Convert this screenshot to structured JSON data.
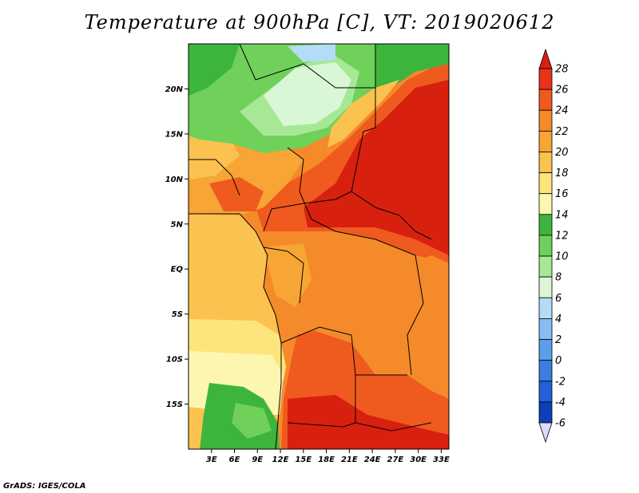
{
  "title": "Temperature at 900hPa [C], VT: 2019020612",
  "credit": "GrADS: IGES/COLA",
  "map": {
    "lon_range": [
      0,
      34
    ],
    "lat_range": [
      -20,
      25
    ],
    "lat_ticks": [
      {
        "value": 20,
        "label": "20N"
      },
      {
        "value": 15,
        "label": "15N"
      },
      {
        "value": 10,
        "label": "10N"
      },
      {
        "value": 5,
        "label": "5N"
      },
      {
        "value": 0,
        "label": "EQ"
      },
      {
        "value": -5,
        "label": "5S"
      },
      {
        "value": -10,
        "label": "10S"
      },
      {
        "value": -15,
        "label": "15S"
      }
    ],
    "lon_ticks": [
      {
        "value": 3,
        "label": "3E"
      },
      {
        "value": 6,
        "label": "6E"
      },
      {
        "value": 9,
        "label": "9E"
      },
      {
        "value": 12,
        "label": "12E"
      },
      {
        "value": 15,
        "label": "15E"
      },
      {
        "value": 18,
        "label": "18E"
      },
      {
        "value": 21,
        "label": "21E"
      },
      {
        "value": 24,
        "label": "24E"
      },
      {
        "value": 27,
        "label": "27E"
      },
      {
        "value": 30,
        "label": "30E"
      },
      {
        "value": 33,
        "label": "33E"
      }
    ]
  },
  "colorbar": {
    "levels": [
      {
        "label": "28",
        "color": "#e8331a"
      },
      {
        "label": "26",
        "color": "#ef5a1f"
      },
      {
        "label": "24",
        "color": "#f58a2a"
      },
      {
        "label": "22",
        "color": "#f7a535"
      },
      {
        "label": "20",
        "color": "#fbc250"
      },
      {
        "label": "18",
        "color": "#fde57c"
      },
      {
        "label": "16",
        "color": "#fdf6b0"
      },
      {
        "label": "14",
        "color": "#3db53d"
      },
      {
        "label": "12",
        "color": "#6fd05a"
      },
      {
        "label": "10",
        "color": "#a6e895"
      },
      {
        "label": "8",
        "color": "#d9f7d6"
      },
      {
        "label": "6",
        "color": "#b4dcf7"
      },
      {
        "label": "4",
        "color": "#86bdf2"
      },
      {
        "label": "2",
        "color": "#5c9ee8"
      },
      {
        "label": "0",
        "color": "#3b7ee0"
      },
      {
        "label": "-2",
        "color": "#2160d8"
      },
      {
        "label": "-4",
        "color": "#0d3fb8"
      },
      {
        "label": "-6",
        "color": "#001a80"
      }
    ],
    "top_triangle_color": "#d8200f",
    "bottom_triangle_color": "#dcdcf8"
  }
}
